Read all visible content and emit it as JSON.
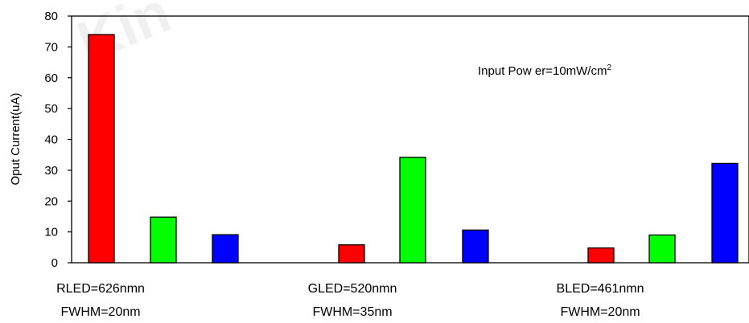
{
  "chart_data": {
    "type": "bar",
    "ylabel": "Oput Current(uA)",
    "ylim": [
      0,
      80
    ],
    "yticks": [
      0,
      10,
      20,
      30,
      40,
      50,
      60,
      70,
      80
    ],
    "annotation": {
      "text": "Input Pow er=10mW/cm",
      "superscript": "2"
    },
    "watermark": "Kin",
    "groups": [
      {
        "label_line1": "RLED=626nmn",
        "label_line2": "FWHM=20nm",
        "values": [
          74,
          14.8,
          9.1
        ]
      },
      {
        "label_line1": "GLED=520nmn",
        "label_line2": "FWHM=35nm",
        "values": [
          5.8,
          34.2,
          10.6
        ]
      },
      {
        "label_line1": "BLED=461nmn",
        "label_line2": "FWHM=20nm",
        "values": [
          4.8,
          9.0,
          32.2
        ]
      }
    ],
    "bar_colors": [
      "#ff0000",
      "#00ff00",
      "#0000ff"
    ],
    "grid": false,
    "legend": "none"
  }
}
